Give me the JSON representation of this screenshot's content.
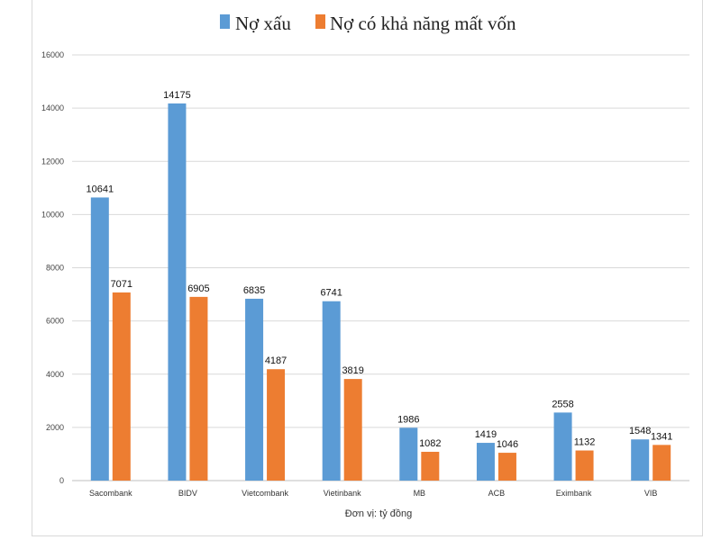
{
  "chart_data": {
    "type": "bar",
    "categories": [
      "Sacombank",
      "BIDV",
      "Vietcombank",
      "Vietinbank",
      "MB",
      "ACB",
      "Eximbank",
      "VIB"
    ],
    "series": [
      {
        "name": "Nợ xấu",
        "color": "#5b9bd5",
        "values": [
          10641,
          14175,
          6835,
          6741,
          1986,
          1419,
          2558,
          1548
        ]
      },
      {
        "name": "Nợ có khả năng mất vốn",
        "color": "#ed7d31",
        "values": [
          7071,
          6905,
          4187,
          3819,
          1082,
          1046,
          1132,
          1341
        ]
      }
    ],
    "ylim": [
      0,
      16000
    ],
    "yticks": [
      0,
      2000,
      4000,
      6000,
      8000,
      10000,
      12000,
      14000,
      16000
    ],
    "xlabel": "Đơn vị: tỷ đồng",
    "ylabel": "",
    "title": "",
    "grid": true,
    "legend": "top-center"
  }
}
